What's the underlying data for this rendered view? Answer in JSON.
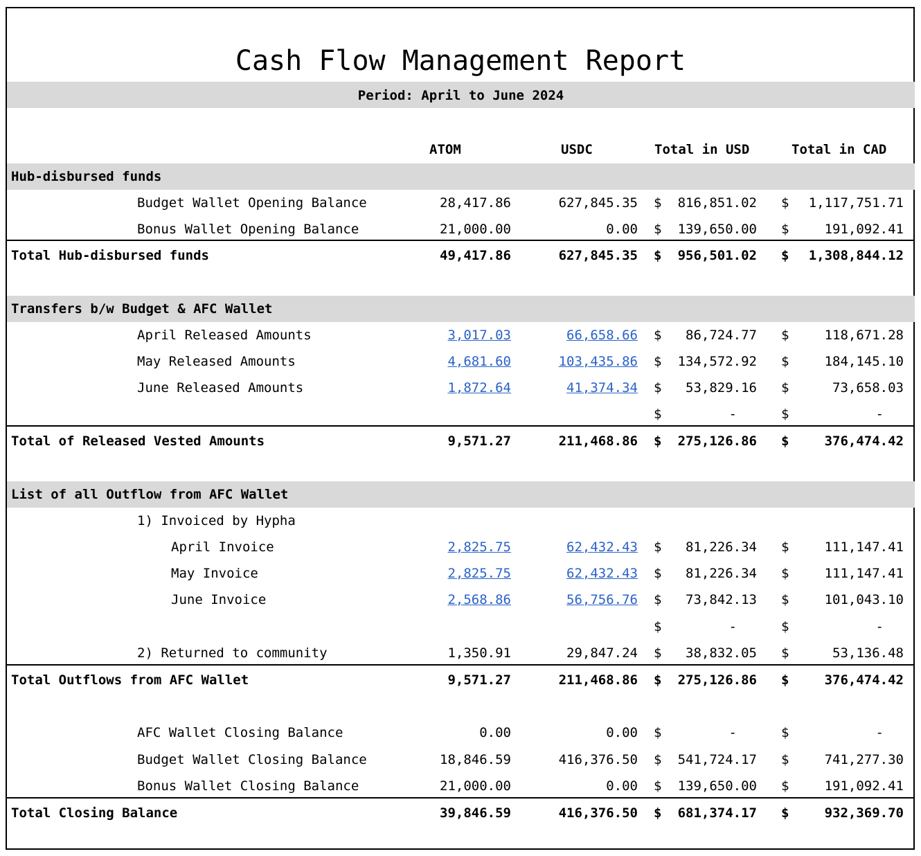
{
  "report": {
    "title": "Cash Flow Management Report",
    "period": "Period: April to June 2024"
  },
  "columns": {
    "atom": "ATOM",
    "usdc": "USDC",
    "total_usd": "Total in USD",
    "total_cad": "Total in CAD"
  },
  "currency_symbol": "$",
  "dash": "-",
  "link_color": "#2a62c9",
  "section_bg": "#d9d9d9",
  "hub": {
    "heading": "Hub-disbursed funds",
    "rows": [
      {
        "label": "Budget Wallet Opening Balance",
        "atom": "28,417.86",
        "usdc": "627,845.35",
        "usd": "816,851.02",
        "cad": "1,117,751.71"
      },
      {
        "label": "Bonus Wallet Opening Balance",
        "atom": "21,000.00",
        "usdc": "0.00",
        "usd": "139,650.00",
        "cad": "191,092.41"
      }
    ],
    "total": {
      "label": "Total Hub-disbursed funds",
      "atom": "49,417.86",
      "usdc": "627,845.35",
      "usd": "956,501.02",
      "cad": "1,308,844.12"
    }
  },
  "transfers": {
    "heading": "Transfers b/w Budget & AFC Wallet",
    "rows": [
      {
        "label": "April Released Amounts",
        "atom": "3,017.03",
        "usdc": "66,658.66",
        "usd": "86,724.77",
        "cad": "118,671.28"
      },
      {
        "label": "May Released Amounts",
        "atom": "4,681.60",
        "usdc": "103,435.86",
        "usd": "134,572.92",
        "cad": "184,145.10"
      },
      {
        "label": "June Released Amounts",
        "atom": "1,872.64",
        "usdc": "41,374.34",
        "usd": "53,829.16",
        "cad": "73,658.03"
      }
    ],
    "total": {
      "label": "Total of Released Vested Amounts",
      "atom": "9,571.27",
      "usdc": "211,468.86",
      "usd": "275,126.86",
      "cad": "376,474.42"
    }
  },
  "outflow": {
    "heading": "List of all Outflow from AFC Wallet",
    "group1": "1) Invoiced by Hypha",
    "invoices": [
      {
        "label": "April Invoice",
        "atom": "2,825.75",
        "usdc": "62,432.43",
        "usd": "81,226.34",
        "cad": "111,147.41"
      },
      {
        "label": "May Invoice",
        "atom": "2,825.75",
        "usdc": "62,432.43",
        "usd": "81,226.34",
        "cad": "111,147.41"
      },
      {
        "label": "June Invoice",
        "atom": "2,568.86",
        "usdc": "56,756.76",
        "usd": "73,842.13",
        "cad": "101,043.10"
      }
    ],
    "returned": {
      "label": "2) Returned to community",
      "atom": "1,350.91",
      "usdc": "29,847.24",
      "usd": "38,832.05",
      "cad": "53,136.48"
    },
    "total": {
      "label": "Total Outflows from AFC Wallet",
      "atom": "9,571.27",
      "usdc": "211,468.86",
      "usd": "275,126.86",
      "cad": "376,474.42"
    }
  },
  "closing": {
    "rows": [
      {
        "label": "AFC Wallet Closing Balance",
        "atom": "0.00",
        "usdc": "0.00"
      },
      {
        "label": "Budget Wallet Closing Balance",
        "atom": "18,846.59",
        "usdc": "416,376.50",
        "usd": "541,724.17",
        "cad": "741,277.30"
      },
      {
        "label": "Bonus Wallet Closing Balance",
        "atom": "21,000.00",
        "usdc": "0.00",
        "usd": "139,650.00",
        "cad": "191,092.41"
      }
    ],
    "total": {
      "label": "Total Closing Balance",
      "atom": "39,846.59",
      "usdc": "416,376.50",
      "usd": "681,374.17",
      "cad": "932,369.70"
    }
  }
}
